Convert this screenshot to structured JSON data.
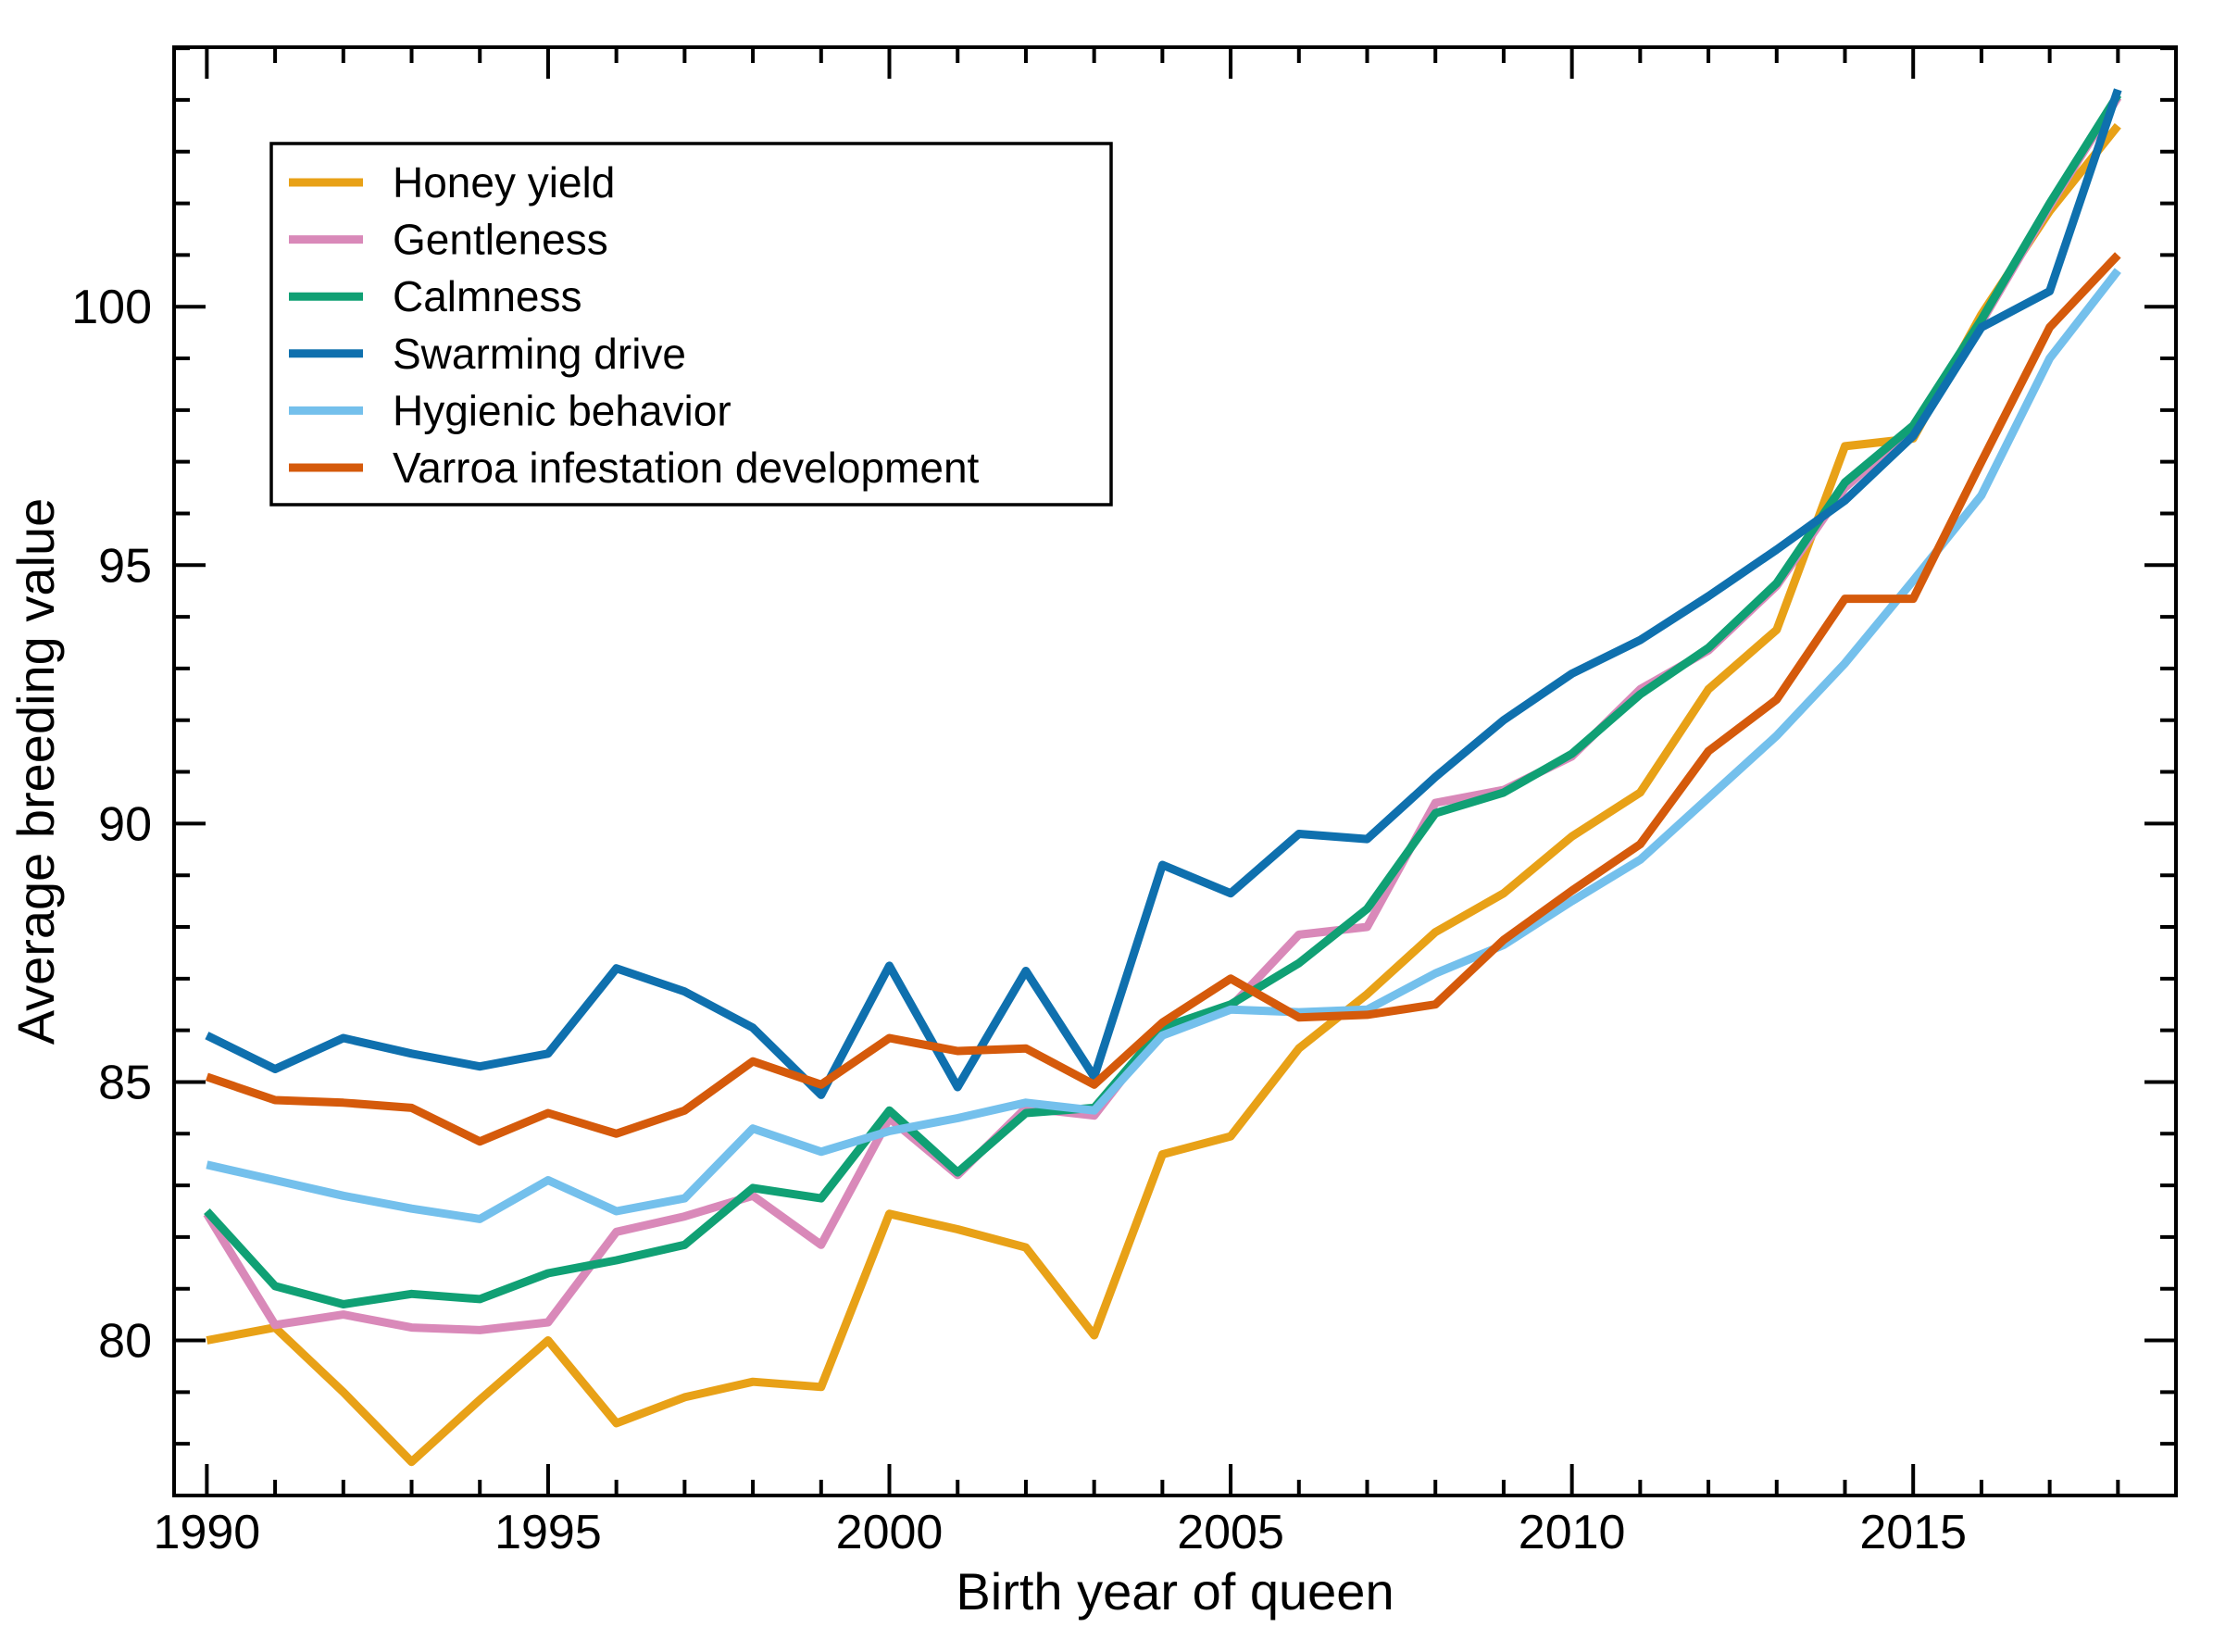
{
  "chart_data": {
    "type": "line",
    "xlabel": "Birth year of queen",
    "ylabel": "Average breeding value",
    "x": [
      1990,
      1991,
      1992,
      1993,
      1994,
      1995,
      1996,
      1997,
      1998,
      1999,
      2000,
      2001,
      2002,
      2003,
      2004,
      2005,
      2006,
      2007,
      2008,
      2009,
      2010,
      2011,
      2012,
      2013,
      2014,
      2015,
      2016,
      2017,
      2018
    ],
    "xlim": [
      1989.52,
      2018.85
    ],
    "ylim": [
      77.0,
      105.02
    ],
    "x_major_ticks": [
      1990,
      1995,
      2000,
      2005,
      2010,
      2015
    ],
    "y_major_ticks": [
      80,
      85,
      90,
      95,
      100
    ],
    "minor_tick_step_x": 1,
    "minor_tick_step_y": 1,
    "grid": "off",
    "legend_position": "top-left",
    "axis_color": "#000000",
    "series": [
      {
        "name": "Honey yield",
        "color": "#E8A117",
        "values": [
          80.0,
          80.25,
          79.0,
          77.65,
          78.85,
          80.0,
          78.4,
          78.9,
          79.2,
          79.1,
          82.45,
          82.15,
          81.8,
          80.1,
          83.6,
          83.95,
          85.65,
          86.7,
          87.9,
          88.65,
          89.75,
          90.6,
          92.6,
          93.75,
          97.3,
          97.45,
          99.85,
          101.85,
          103.5
        ]
      },
      {
        "name": "Gentleness",
        "color": "#D989B9",
        "values": [
          82.45,
          80.3,
          80.5,
          80.25,
          80.2,
          80.35,
          82.1,
          82.4,
          82.8,
          81.85,
          84.3,
          83.2,
          84.5,
          84.35,
          86.05,
          86.45,
          87.85,
          88.0,
          90.4,
          90.65,
          91.3,
          92.6,
          93.35,
          94.6,
          96.5,
          97.65,
          99.7,
          101.95,
          104.05
        ]
      },
      {
        "name": "Calmness",
        "color": "#10A074",
        "values": [
          82.5,
          81.05,
          80.7,
          80.9,
          80.8,
          81.3,
          81.55,
          81.85,
          82.95,
          82.75,
          84.45,
          83.25,
          84.4,
          84.5,
          86.05,
          86.5,
          87.3,
          88.35,
          90.2,
          90.6,
          91.35,
          92.5,
          93.4,
          94.65,
          96.6,
          97.7,
          99.75,
          102.0,
          104.1
        ]
      },
      {
        "name": "Swarming drive",
        "color": "#0F70AE",
        "values": [
          85.9,
          85.25,
          85.85,
          85.55,
          85.3,
          85.55,
          87.2,
          86.75,
          86.05,
          84.75,
          87.25,
          84.9,
          87.15,
          85.1,
          89.2,
          88.65,
          89.8,
          89.7,
          90.9,
          92.0,
          92.9,
          93.55,
          94.4,
          95.3,
          96.25,
          97.5,
          99.6,
          100.3,
          104.2
        ]
      },
      {
        "name": "Hygienic behavior",
        "color": "#74C0EC",
        "values": [
          83.4,
          83.1,
          82.8,
          82.55,
          82.35,
          83.1,
          82.5,
          82.75,
          84.1,
          83.65,
          84.05,
          84.3,
          84.6,
          84.45,
          85.9,
          86.4,
          86.35,
          86.4,
          87.1,
          87.65,
          88.5,
          89.3,
          90.5,
          91.7,
          93.1,
          94.7,
          96.35,
          99.0,
          100.7
        ]
      },
      {
        "name": "Varroa infestation development",
        "color": "#D55A0B",
        "values": [
          85.1,
          84.65,
          84.6,
          84.5,
          83.85,
          84.4,
          84.0,
          84.45,
          85.4,
          84.95,
          85.85,
          85.6,
          85.65,
          84.95,
          86.15,
          87.0,
          86.25,
          86.3,
          86.5,
          87.75,
          88.7,
          89.6,
          91.4,
          92.4,
          94.35,
          94.35,
          97.0,
          99.6,
          101.0
        ]
      }
    ]
  }
}
